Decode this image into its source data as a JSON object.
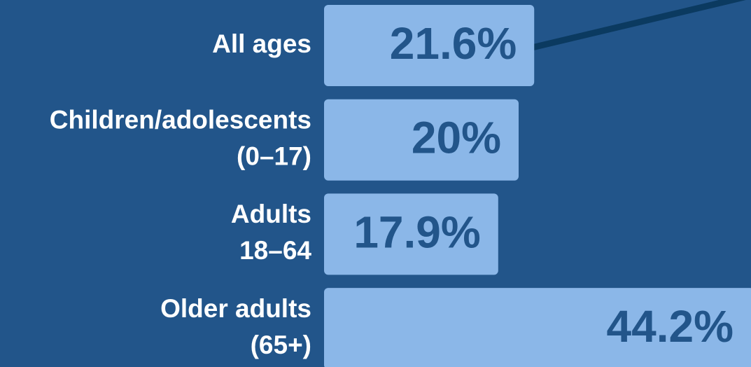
{
  "chart_data": {
    "type": "bar",
    "categories": [
      [
        "All ages"
      ],
      [
        "Children/adolescents",
        "(0–17)"
      ],
      [
        "Adults",
        "18–64"
      ],
      [
        "Older adults",
        "(65+)"
      ]
    ],
    "values": [
      21.6,
      20,
      17.9,
      44.2
    ],
    "value_labels": [
      "21.6%",
      "20%",
      "17.9%",
      "44.2%"
    ],
    "color": "#8bb7e8"
  }
}
